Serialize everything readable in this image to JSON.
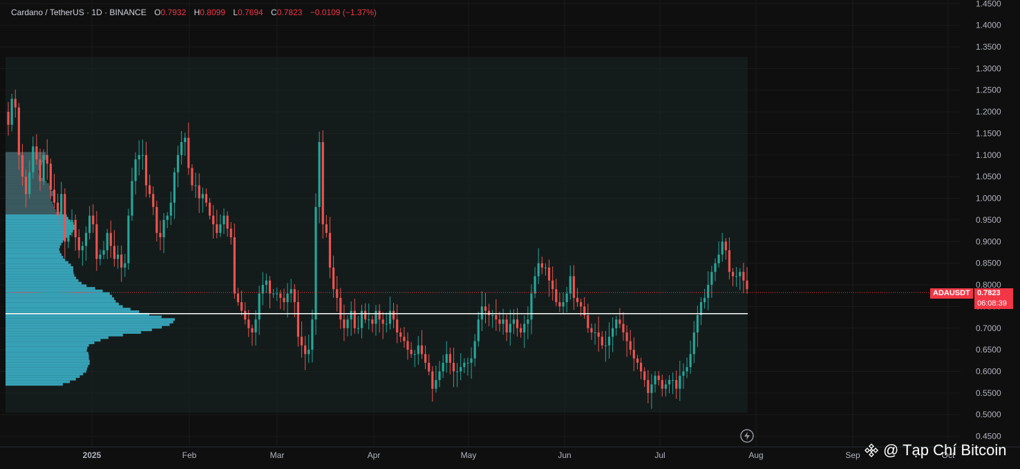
{
  "legend": {
    "symbol": "Cardano / TetherUS · 1D · BINANCE",
    "o_label": "O",
    "o": "0.7932",
    "h_label": "H",
    "h": "0.8099",
    "l_label": "L",
    "l": "0.7694",
    "c_label": "C",
    "c": "0.7823",
    "change": "−0.0109 (−1.37%)"
  },
  "price_tag": {
    "symbol": "ADAUSDT",
    "price": "0.7823",
    "countdown": "06:08:39"
  },
  "watermark": {
    "text": "@ Tạp Chí Bitcoin"
  },
  "colors": {
    "up": "#26a69a",
    "down": "#ef5350",
    "background": "#0f0f0f",
    "volume_profile": "#39a9bf",
    "poc_line": "#ffffff",
    "last_price": "#f23645"
  },
  "chart_data": {
    "type": "candlestick",
    "title": "Cardano / TetherUS · 1D · BINANCE",
    "x_ticks": [
      "2025",
      "Feb",
      "Mar",
      "Apr",
      "May",
      "Jun",
      "Jul",
      "Aug",
      "Sep",
      "Oct"
    ],
    "y_ticks": [
      "1.4500",
      "1.4000",
      "1.3500",
      "1.3000",
      "1.2500",
      "1.2000",
      "1.1500",
      "1.1000",
      "1.0500",
      "1.0000",
      "0.9500",
      "0.9000",
      "0.8500",
      "0.8000",
      "0.7500",
      "0.7000",
      "0.6500",
      "0.6000",
      "0.5500",
      "0.5000",
      "0.4500"
    ],
    "ylim": [
      0.435,
      1.452
    ],
    "last_price": 0.7823,
    "poc_price": 0.7335,
    "value_area": {
      "high": 1.327,
      "low": 0.505
    },
    "closes": [
      1.17,
      1.23,
      1.21,
      1.1,
      1.05,
      1.01,
      1.06,
      1.12,
      1.09,
      1.04,
      1.1,
      1.08,
      1.02,
      0.99,
      0.96,
      1.01,
      0.9,
      0.93,
      0.95,
      0.91,
      0.88,
      0.89,
      0.92,
      0.96,
      0.94,
      0.86,
      0.87,
      0.88,
      0.92,
      0.89,
      0.86,
      0.87,
      0.84,
      0.85,
      0.96,
      1.04,
      1.09,
      1.1,
      1.1,
      1.03,
      1.01,
      0.98,
      0.92,
      0.91,
      0.95,
      0.96,
      0.99,
      1.06,
      1.1,
      1.13,
      1.14,
      1.07,
      1.03,
      1.03,
      1,
      1.01,
      0.99,
      0.96,
      0.94,
      0.92,
      0.94,
      0.96,
      0.93,
      0.91,
      0.78,
      0.76,
      0.74,
      0.72,
      0.7,
      0.69,
      0.72,
      0.78,
      0.8,
      0.81,
      0.78,
      0.78,
      0.78,
      0.77,
      0.76,
      0.78,
      0.79,
      0.76,
      0.68,
      0.66,
      0.64,
      0.65,
      0.72,
      0.98,
      1.13,
      0.94,
      0.92,
      0.84,
      0.79,
      0.77,
      0.72,
      0.7,
      0.72,
      0.74,
      0.7,
      0.7,
      0.74,
      0.72,
      0.72,
      0.71,
      0.74,
      0.72,
      0.71,
      0.71,
      0.74,
      0.72,
      0.69,
      0.68,
      0.67,
      0.65,
      0.64,
      0.64,
      0.66,
      0.64,
      0.62,
      0.6,
      0.56,
      0.58,
      0.6,
      0.62,
      0.64,
      0.62,
      0.6,
      0.6,
      0.61,
      0.62,
      0.62,
      0.63,
      0.67,
      0.72,
      0.75,
      0.74,
      0.73,
      0.73,
      0.72,
      0.71,
      0.72,
      0.69,
      0.71,
      0.72,
      0.7,
      0.69,
      0.71,
      0.72,
      0.78,
      0.82,
      0.85,
      0.84,
      0.84,
      0.81,
      0.79,
      0.76,
      0.75,
      0.76,
      0.78,
      0.82,
      0.77,
      0.76,
      0.75,
      0.73,
      0.7,
      0.69,
      0.69,
      0.68,
      0.66,
      0.66,
      0.68,
      0.7,
      0.72,
      0.71,
      0.69,
      0.67,
      0.65,
      0.63,
      0.62,
      0.6,
      0.58,
      0.55,
      0.57,
      0.59,
      0.58,
      0.56,
      0.57,
      0.58,
      0.58,
      0.56,
      0.59,
      0.6,
      0.61,
      0.64,
      0.69,
      0.73,
      0.76,
      0.77,
      0.8,
      0.83,
      0.85,
      0.87,
      0.9,
      0.88,
      0.83,
      0.82,
      0.82,
      0.83,
      0.81,
      0.79
    ]
  }
}
